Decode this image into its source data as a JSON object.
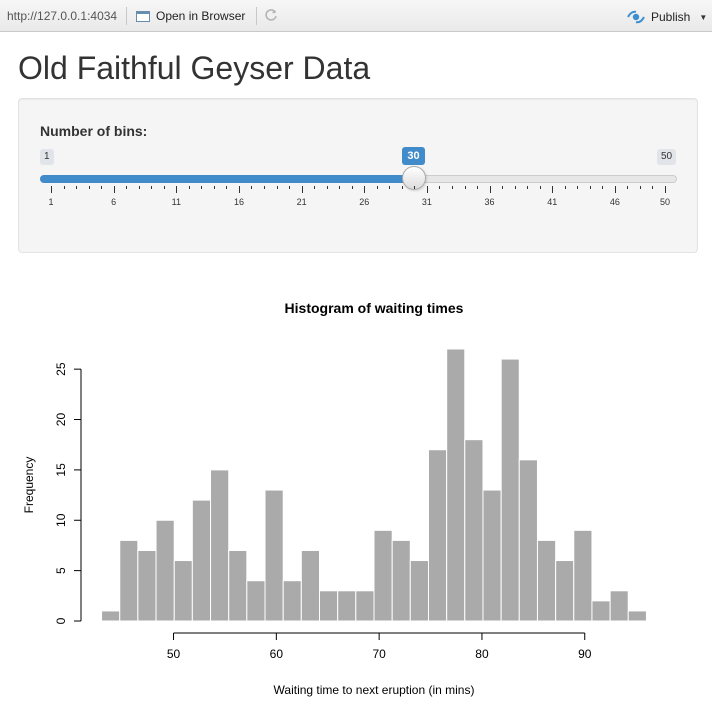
{
  "toolbar": {
    "url": "http://127.0.0.1:4034",
    "open_browser_label": "Open in Browser",
    "refresh_icon": "refresh-icon",
    "publish_label": "Publish",
    "publish_icon": "publish-icon"
  },
  "page": {
    "title": "Old Faithful Geyser Data"
  },
  "slider": {
    "label": "Number of bins:",
    "min": 1,
    "max": 50,
    "value": 30,
    "min_label": "1",
    "max_label": "50",
    "value_label": "30",
    "tick_labels": [
      "1",
      "6",
      "11",
      "16",
      "21",
      "26",
      "31",
      "36",
      "41",
      "46",
      "50"
    ],
    "fill_color": "#428bca"
  },
  "chart_data": {
    "type": "bar",
    "title": "Histogram of waiting times",
    "xlabel": "Waiting time to next eruption (in mins)",
    "ylabel": "Frequency",
    "bar_color": "#aaaaaa",
    "bin_edges": [
      43,
      44.77,
      46.53,
      48.3,
      50.07,
      51.83,
      53.6,
      55.37,
      57.13,
      58.9,
      60.67,
      62.43,
      64.2,
      65.97,
      67.73,
      69.5,
      71.27,
      73.03,
      74.8,
      76.57,
      78.33,
      80.1,
      81.87,
      83.63,
      85.4,
      87.17,
      88.93,
      90.7,
      92.47,
      94.23,
      96
    ],
    "values": [
      1,
      8,
      7,
      10,
      6,
      12,
      15,
      7,
      4,
      13,
      4,
      7,
      3,
      3,
      3,
      9,
      8,
      6,
      17,
      27,
      18,
      13,
      26,
      16,
      8,
      6,
      9,
      2,
      3,
      1
    ],
    "x_ticks": [
      50,
      60,
      70,
      80,
      90
    ],
    "y_ticks": [
      0,
      5,
      10,
      15,
      20,
      25
    ],
    "xlim": [
      41,
      98
    ],
    "ylim": [
      0,
      27
    ]
  }
}
